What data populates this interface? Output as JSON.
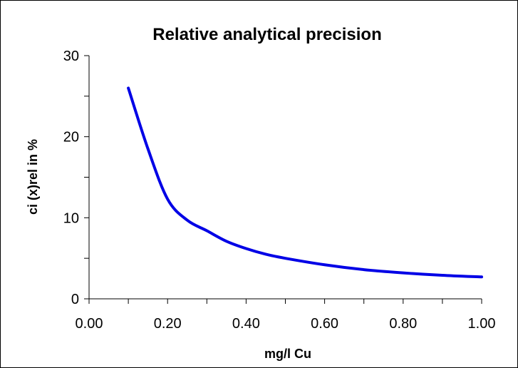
{
  "chart_data": {
    "type": "line",
    "title": "Relative analytical precision",
    "xlabel": "mg/l Cu",
    "ylabel": "ci (x)rel in %",
    "xlim": [
      0,
      1
    ],
    "ylim": [
      0,
      30
    ],
    "x_ticks": [
      "0.00",
      "0.20",
      "0.40",
      "0.60",
      "0.80",
      "1.00"
    ],
    "y_ticks": [
      "0",
      "10",
      "20",
      "30"
    ],
    "grid": false,
    "line_color": "#0000e6",
    "series": [
      {
        "x": [
          0.1,
          0.15,
          0.2,
          0.25,
          0.3,
          0.35,
          0.4,
          0.45,
          0.5,
          0.6,
          0.7,
          0.8,
          0.9,
          1.0
        ],
        "y": [
          26.0,
          18.5,
          12.3,
          9.7,
          8.4,
          7.1,
          6.2,
          5.5,
          5.0,
          4.2,
          3.6,
          3.2,
          2.9,
          2.7
        ]
      }
    ]
  }
}
